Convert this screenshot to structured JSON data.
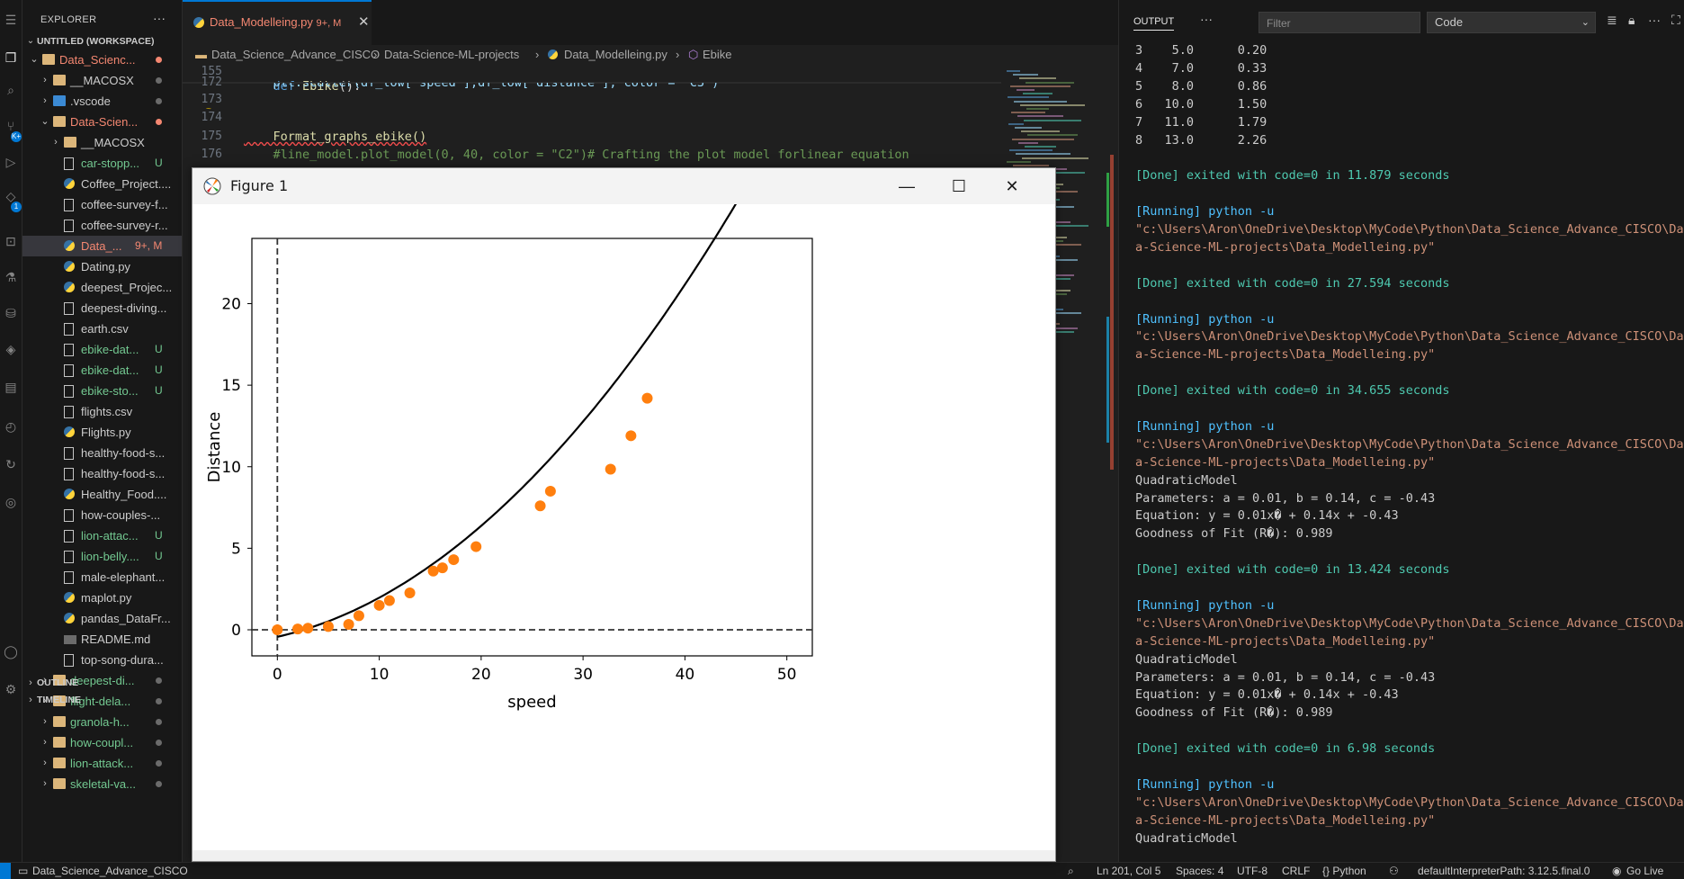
{
  "explorer": {
    "title": "EXPLORER",
    "more": "···",
    "workspace": "UNTITLED (WORKSPACE)",
    "outline": "OUTLINE",
    "timeline": "TIMELINE",
    "rows": [
      {
        "label": "Data_Scienc...",
        "color": "#f48771",
        "badge": "",
        "dot": "#f48771"
      },
      {
        "label": "__MACOSX",
        "color": "#cccccc",
        "badge": "",
        "dot": "#6b6b6b"
      },
      {
        "label": ".vscode",
        "color": "#cccccc",
        "badge": "",
        "dot": "#6b6b6b"
      },
      {
        "label": "Data-Scien...",
        "color": "#f48771",
        "badge": "",
        "dot": "#f48771"
      },
      {
        "label": "__MACOSX",
        "color": "#cccccc",
        "badge": "",
        "dot": ""
      },
      {
        "label": "car-stopp...",
        "color": "#73c991",
        "badge": "U",
        "dot": ""
      },
      {
        "label": "Coffee_Project....",
        "color": "#cccccc",
        "badge": "",
        "dot": ""
      },
      {
        "label": "coffee-survey-f...",
        "color": "#cccccc",
        "badge": "",
        "dot": ""
      },
      {
        "label": "coffee-survey-r...",
        "color": "#cccccc",
        "badge": "",
        "dot": ""
      },
      {
        "label": "Data_...",
        "color": "#f48771",
        "badge": "9+, M",
        "dot": ""
      },
      {
        "label": "Dating.py",
        "color": "#cccccc",
        "badge": "",
        "dot": ""
      },
      {
        "label": "deepest_Projec...",
        "color": "#cccccc",
        "badge": "",
        "dot": ""
      },
      {
        "label": "deepest-diving...",
        "color": "#cccccc",
        "badge": "",
        "dot": ""
      },
      {
        "label": "earth.csv",
        "color": "#cccccc",
        "badge": "",
        "dot": ""
      },
      {
        "label": "ebike-dat...",
        "color": "#73c991",
        "badge": "U",
        "dot": ""
      },
      {
        "label": "ebike-dat...",
        "color": "#73c991",
        "badge": "U",
        "dot": ""
      },
      {
        "label": "ebike-sto...",
        "color": "#73c991",
        "badge": "U",
        "dot": ""
      },
      {
        "label": "flights.csv",
        "color": "#cccccc",
        "badge": "",
        "dot": ""
      },
      {
        "label": "Flights.py",
        "color": "#cccccc",
        "badge": "",
        "dot": ""
      },
      {
        "label": "healthy-food-s...",
        "color": "#cccccc",
        "badge": "",
        "dot": ""
      },
      {
        "label": "healthy-food-s...",
        "color": "#cccccc",
        "badge": "",
        "dot": ""
      },
      {
        "label": "Healthy_Food....",
        "color": "#cccccc",
        "badge": "",
        "dot": ""
      },
      {
        "label": "how-couples-...",
        "color": "#cccccc",
        "badge": "",
        "dot": ""
      },
      {
        "label": "lion-attac...",
        "color": "#73c991",
        "badge": "U",
        "dot": ""
      },
      {
        "label": "lion-belly....",
        "color": "#73c991",
        "badge": "U",
        "dot": ""
      },
      {
        "label": "male-elephant...",
        "color": "#cccccc",
        "badge": "",
        "dot": ""
      },
      {
        "label": "maplot.py",
        "color": "#cccccc",
        "badge": "",
        "dot": ""
      },
      {
        "label": "pandas_DataFr...",
        "color": "#cccccc",
        "badge": "",
        "dot": ""
      },
      {
        "label": "README.md",
        "color": "#cccccc",
        "badge": "",
        "dot": ""
      },
      {
        "label": "top-song-dura...",
        "color": "#cccccc",
        "badge": "",
        "dot": ""
      },
      {
        "label": "deepest-di...",
        "color": "#73c991",
        "badge": "",
        "dot": "#6b6b6b"
      },
      {
        "label": "flight-dela...",
        "color": "#73c991",
        "badge": "",
        "dot": "#6b6b6b"
      },
      {
        "label": "granola-h...",
        "color": "#73c991",
        "badge": "",
        "dot": "#6b6b6b"
      },
      {
        "label": "how-coupl...",
        "color": "#73c991",
        "badge": "",
        "dot": "#6b6b6b"
      },
      {
        "label": "lion-attack...",
        "color": "#73c991",
        "badge": "",
        "dot": "#6b6b6b"
      },
      {
        "label": "skeletal-va...",
        "color": "#73c991",
        "badge": "",
        "dot": "#6b6b6b"
      }
    ]
  },
  "tab": {
    "label": "Data_Modelleing.py",
    "badge": "9+, M",
    "close": "✕"
  },
  "breadcrumb": {
    "workspace": "Data_Science_Advance_CISCO",
    "folder": "Data-Science-ML-projects",
    "file": "Data_Modelleing.py",
    "symbol": "Ebike"
  },
  "editor": {
    "lines": [
      {
        "num": "155",
        "code": "def Ebike():"
      },
      {
        "num": "172",
        "code": "    plt.scatter(df_low['speed'],df_low['distance'], color = 'C3')"
      },
      {
        "num": "173",
        "code": ""
      },
      {
        "num": "174",
        "code": ""
      },
      {
        "num": "175",
        "code": "    Format_graphs_ebike()"
      },
      {
        "num": "176",
        "code": "    #line_model.plot_model(0, 40, color = \"C2\")# Crafting the plot model forlinear equation"
      }
    ]
  },
  "output": {
    "title": "OUTPUT",
    "more": "···",
    "filter_placeholder": "Filter",
    "channel": "Code",
    "lines": [
      {
        "text": "3    5.0      0.20",
        "cls": ""
      },
      {
        "text": "4    7.0      0.33",
        "cls": ""
      },
      {
        "text": "5    8.0      0.86",
        "cls": ""
      },
      {
        "text": "6   10.0      1.50",
        "cls": ""
      },
      {
        "text": "7   11.0      1.79",
        "cls": ""
      },
      {
        "text": "8   13.0      2.26",
        "cls": ""
      },
      {
        "text": "",
        "cls": ""
      },
      {
        "text": "[Done] exited with code=0 in 11.879 seconds",
        "cls": "done"
      },
      {
        "text": "",
        "cls": ""
      },
      {
        "text": "[Running] python -u",
        "cls": "run"
      },
      {
        "text": "\"c:\\Users\\Aron\\OneDrive\\Desktop\\MyCode\\Python\\Data_Science_Advance_CISCO\\Dat",
        "cls": "path"
      },
      {
        "text": "a-Science-ML-projects\\Data_Modelleing.py\"",
        "cls": "path"
      },
      {
        "text": "",
        "cls": ""
      },
      {
        "text": "[Done] exited with code=0 in 27.594 seconds",
        "cls": "done"
      },
      {
        "text": "",
        "cls": ""
      },
      {
        "text": "[Running] python -u",
        "cls": "run"
      },
      {
        "text": "\"c:\\Users\\Aron\\OneDrive\\Desktop\\MyCode\\Python\\Data_Science_Advance_CISCO\\Dat",
        "cls": "path"
      },
      {
        "text": "a-Science-ML-projects\\Data_Modelleing.py\"",
        "cls": "path"
      },
      {
        "text": "",
        "cls": ""
      },
      {
        "text": "[Done] exited with code=0 in 34.655 seconds",
        "cls": "done"
      },
      {
        "text": "",
        "cls": ""
      },
      {
        "text": "[Running] python -u",
        "cls": "run"
      },
      {
        "text": "\"c:\\Users\\Aron\\OneDrive\\Desktop\\MyCode\\Python\\Data_Science_Advance_CISCO\\Dat",
        "cls": "path"
      },
      {
        "text": "a-Science-ML-projects\\Data_Modelleing.py\"",
        "cls": "path"
      },
      {
        "text": "QuadraticModel",
        "cls": ""
      },
      {
        "text": "Parameters: a = 0.01, b = 0.14, c = -0.43",
        "cls": ""
      },
      {
        "text": "Equation: y = 0.01x� + 0.14x + -0.43",
        "cls": ""
      },
      {
        "text": "Goodness of Fit (R�): 0.989",
        "cls": ""
      },
      {
        "text": "",
        "cls": ""
      },
      {
        "text": "[Done] exited with code=0 in 13.424 seconds",
        "cls": "done"
      },
      {
        "text": "",
        "cls": ""
      },
      {
        "text": "[Running] python -u",
        "cls": "run"
      },
      {
        "text": "\"c:\\Users\\Aron\\OneDrive\\Desktop\\MyCode\\Python\\Data_Science_Advance_CISCO\\Dat",
        "cls": "path"
      },
      {
        "text": "a-Science-ML-projects\\Data_Modelleing.py\"",
        "cls": "path"
      },
      {
        "text": "QuadraticModel",
        "cls": ""
      },
      {
        "text": "Parameters: a = 0.01, b = 0.14, c = -0.43",
        "cls": ""
      },
      {
        "text": "Equation: y = 0.01x� + 0.14x + -0.43",
        "cls": ""
      },
      {
        "text": "Goodness of Fit (R�): 0.989",
        "cls": ""
      },
      {
        "text": "",
        "cls": ""
      },
      {
        "text": "[Done] exited with code=0 in 6.98 seconds",
        "cls": "done"
      },
      {
        "text": "",
        "cls": ""
      },
      {
        "text": "[Running] python -u",
        "cls": "run"
      },
      {
        "text": "\"c:\\Users\\Aron\\OneDrive\\Desktop\\MyCode\\Python\\Data_Science_Advance_CISCO\\Dat",
        "cls": "path"
      },
      {
        "text": "a-Science-ML-projects\\Data_Modelleing.py\"",
        "cls": "path"
      },
      {
        "text": "QuadraticModel",
        "cls": ""
      }
    ]
  },
  "statusbar": {
    "workspace": "Data_Science_Advance_CISCO",
    "position": "Ln 201, Col 5",
    "spaces": "Spaces: 4",
    "encoding": "UTF-8",
    "eol": "CRLF",
    "language": "{} Python",
    "interpreter": "defaultInterpreterPath: 3.12.5.final.0",
    "golive": "Go Live"
  },
  "figure": {
    "title": "Figure 1",
    "minimize": "—",
    "maximize": "☐",
    "close": "✕"
  },
  "chart_data": {
    "type": "scatter",
    "xlabel": "speed",
    "ylabel": "Distance",
    "xlim": [
      -2.5,
      52.5
    ],
    "ylim": [
      -1.6,
      24.0
    ],
    "xticks": [
      0,
      10,
      20,
      30,
      40,
      50
    ],
    "yticks": [
      0,
      5,
      10,
      15,
      20
    ],
    "scatter_color": "#ff7f0e",
    "line_color": "#000000",
    "points": [
      {
        "x": 0.0,
        "y": 0.0
      },
      {
        "x": 2.0,
        "y": 0.05
      },
      {
        "x": 3.0,
        "y": 0.1
      },
      {
        "x": 5.0,
        "y": 0.2
      },
      {
        "x": 7.0,
        "y": 0.33
      },
      {
        "x": 8.0,
        "y": 0.86
      },
      {
        "x": 10.0,
        "y": 1.5
      },
      {
        "x": 11.0,
        "y": 1.79
      },
      {
        "x": 13.0,
        "y": 2.26
      },
      {
        "x": 15.3,
        "y": 3.6
      },
      {
        "x": 16.2,
        "y": 3.8
      },
      {
        "x": 17.3,
        "y": 4.3
      },
      {
        "x": 19.5,
        "y": 5.1
      },
      {
        "x": 25.8,
        "y": 7.6
      },
      {
        "x": 26.8,
        "y": 8.5
      },
      {
        "x": 32.7,
        "y": 9.85
      },
      {
        "x": 34.7,
        "y": 11.9
      },
      {
        "x": 36.3,
        "y": 14.2
      }
    ],
    "model": {
      "name": "QuadraticModel",
      "a": 0.01,
      "b": 0.14,
      "c": -0.43,
      "x_from": 0,
      "x_to": 50
    },
    "reference_lines": {
      "hline_y": 0,
      "vline_x": 0
    }
  }
}
